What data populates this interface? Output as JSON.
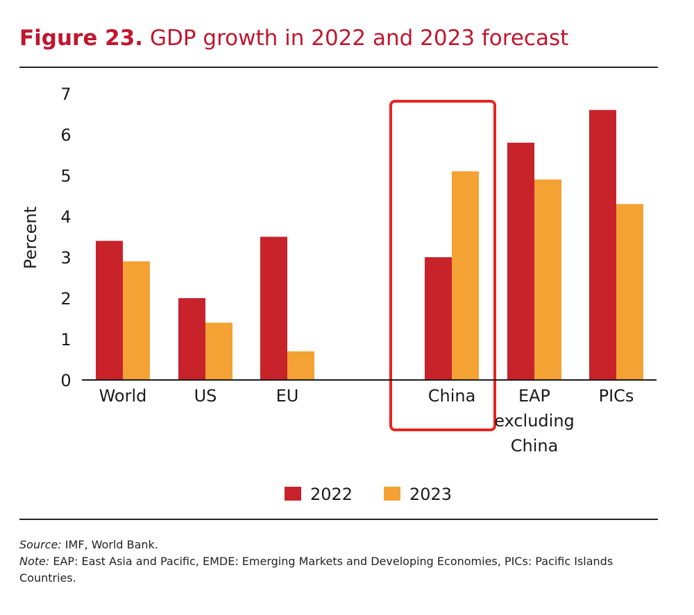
{
  "title": {
    "number": "Figure 23.",
    "text": "GDP growth in 2022 and 2023 forecast"
  },
  "footer": {
    "source_label": "Source:",
    "source_text": "IMF, World Bank.",
    "note_label": "Note:",
    "note_text": "EAP: East Asia and Pacific, EMDE: Emerging Markets and Developing Economies, PICs: Pacific Islands Countries."
  },
  "colors": {
    "2022": "#c8222b",
    "2023": "#f4a233",
    "highlight": "#e8231f"
  },
  "chart_data": {
    "type": "bar",
    "ylabel": "Percent",
    "xlabel": "",
    "ylim": [
      0,
      7
    ],
    "yticks": [
      "0",
      "1",
      "2",
      "3",
      "4",
      "5",
      "6",
      "7"
    ],
    "categories": [
      "World",
      "US",
      "EU",
      "China",
      "EAP excluding China",
      "PICs"
    ],
    "category_label_lines": [
      [
        "World"
      ],
      [
        "US"
      ],
      [
        "EU"
      ],
      [
        "China"
      ],
      [
        "EAP",
        "excluding",
        "China"
      ],
      [
        "PICs"
      ]
    ],
    "series": [
      {
        "name": "2022",
        "values": [
          3.4,
          2.0,
          3.5,
          3.0,
          5.8,
          6.6
        ]
      },
      {
        "name": "2023",
        "values": [
          2.9,
          1.4,
          0.7,
          5.1,
          4.9,
          4.3
        ]
      }
    ],
    "highlighted_category": "China",
    "grid": false,
    "legend_position": "bottom-center"
  }
}
